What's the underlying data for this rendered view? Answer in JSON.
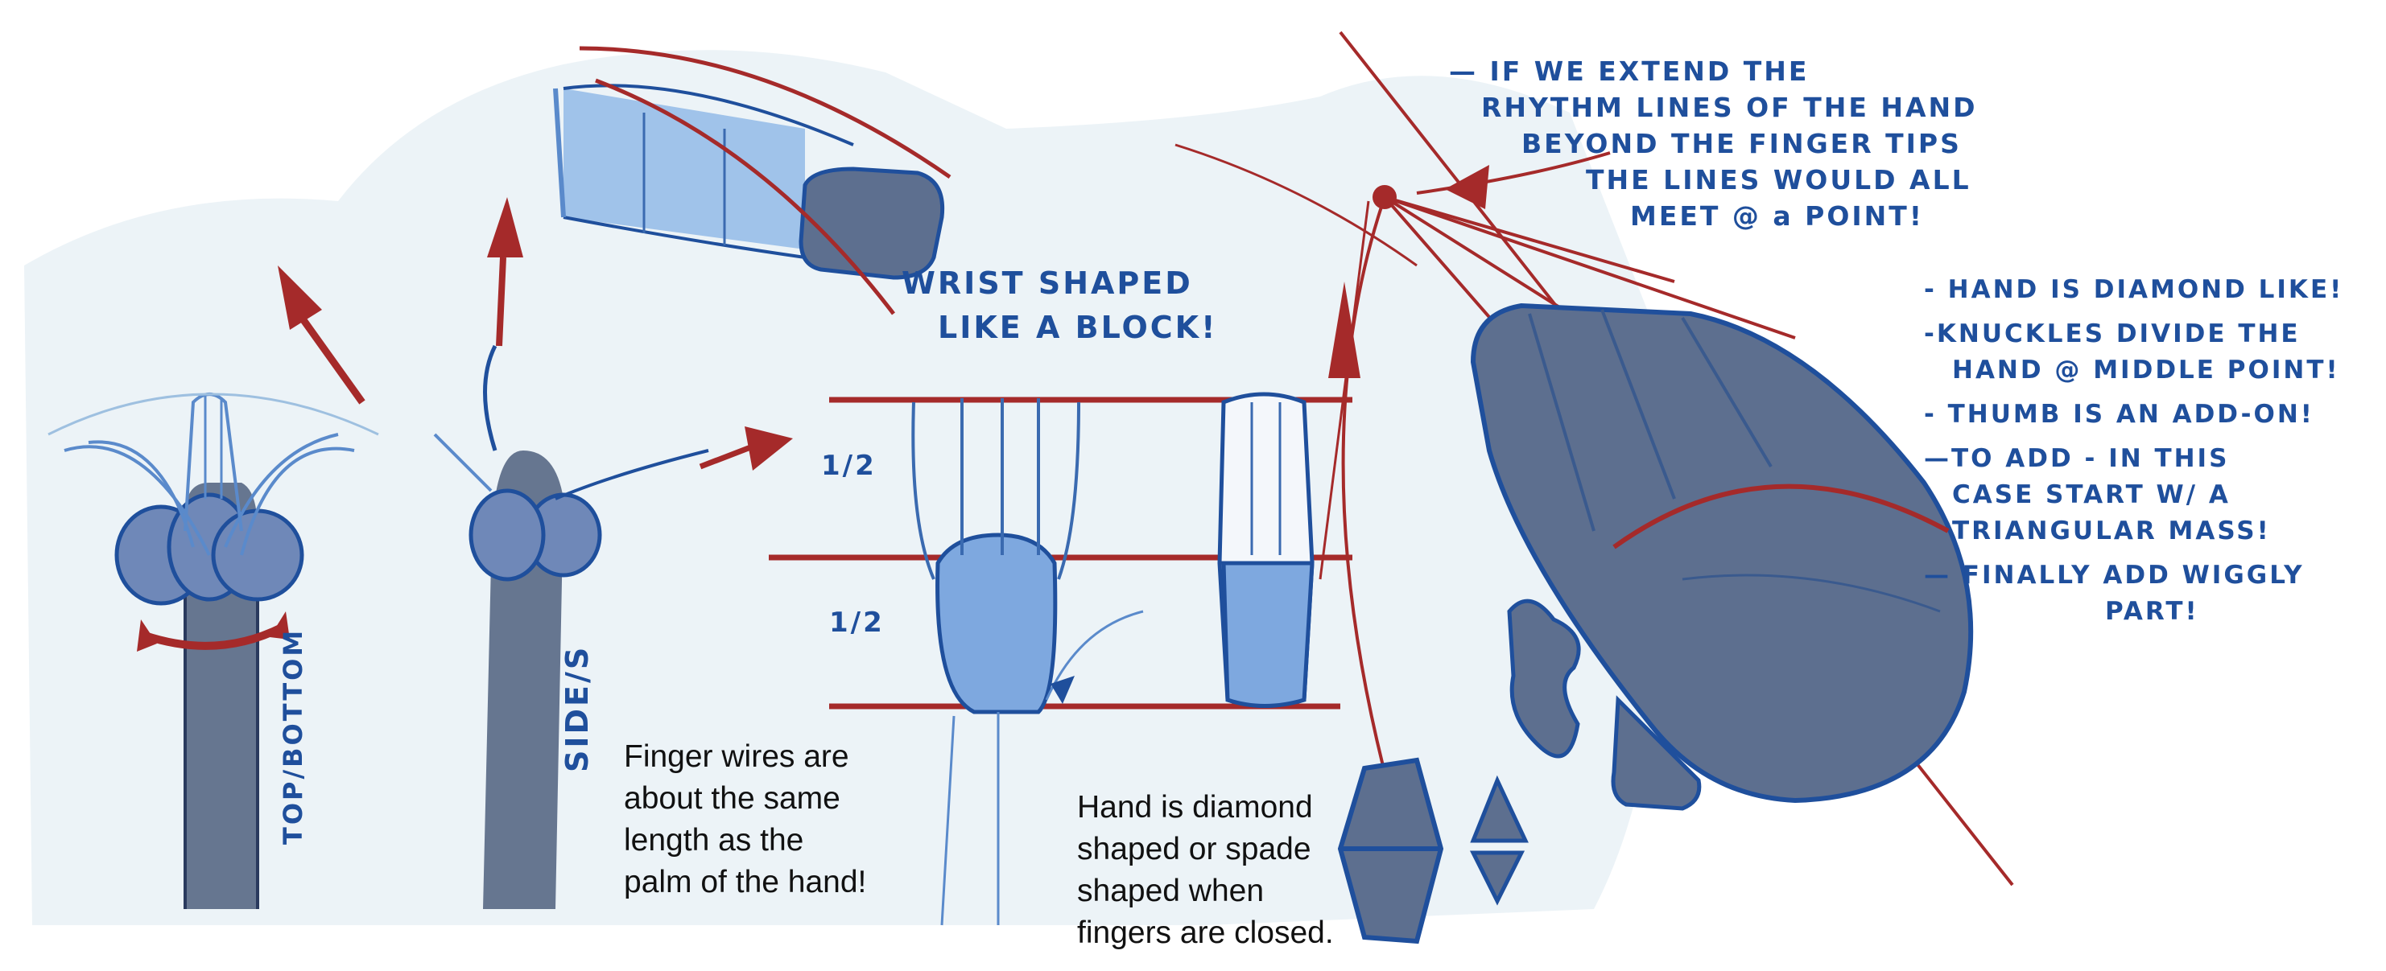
{
  "annotations": {
    "wrist": [
      "WRIST SHAPED",
      "LIKE A BLOCK!"
    ],
    "rhythm": [
      "— IF WE EXTEND THE",
      "RHYTHM LINES OF THE HAND",
      "BEYOND THE FINGER TIPS",
      "THE LINES WOULD ALL",
      "MEET @ a POINT!"
    ],
    "notes": [
      "- HAND IS DIAMOND LIKE!",
      "-KNUCKLES DIVIDE THE",
      "HAND @ MIDDLE POINT!",
      "- THUMB IS AN ADD-ON!",
      "—TO ADD - IN THIS",
      "CASE START W/ A",
      "TRIANGULAR MASS!",
      "— FINALLY ADD WIGGLY",
      "PART!"
    ],
    "top_bottom": "TOP/BOTTOM",
    "sides": "SIDE/S",
    "half_top": "1/2",
    "half_bottom": "1/2"
  },
  "captions": {
    "finger_wires": "Finger wires are\nabout the same\nlength as the\npalm of the hand!",
    "diamond": "Hand is diamond\nshaped or spade\nshaped when\n fingers are closed."
  },
  "colors": {
    "ink_blue": "#1f4f9c",
    "fill_blue": "#6f9fd8",
    "slate": "#5d6f8f",
    "red": "#a52a2a",
    "wash": "#e8f0f5"
  }
}
